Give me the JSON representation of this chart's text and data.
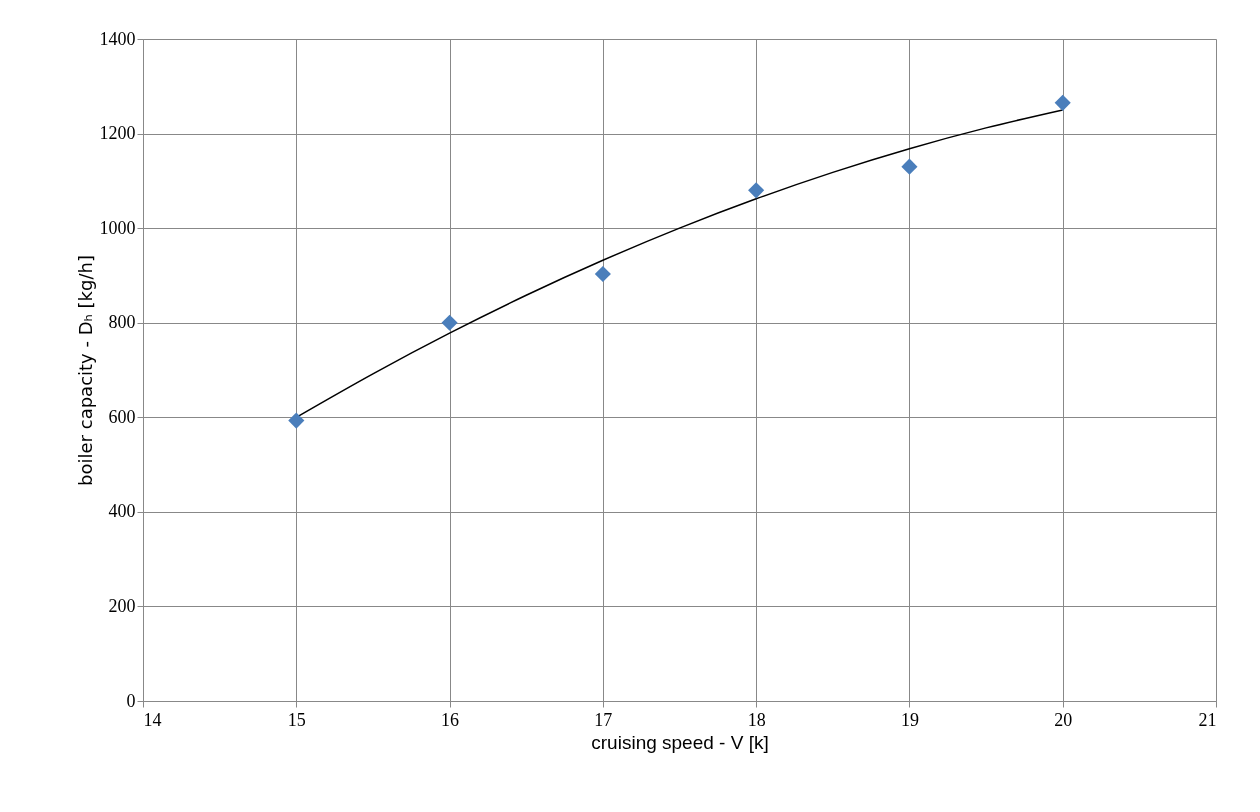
{
  "chart_data": {
    "type": "scatter",
    "xlabel": "cruising speed - V [k]",
    "ylabel": "boiler capacity - Dₕ [kg/h]",
    "xlim": [
      14,
      21
    ],
    "xticks": [
      14,
      15,
      16,
      17,
      18,
      19,
      20,
      21
    ],
    "ylim": [
      0,
      1400
    ],
    "yticks": [
      0,
      200,
      400,
      600,
      800,
      1000,
      1200,
      1400
    ],
    "grid": true,
    "marker": "diamond",
    "series": [
      {
        "color": "#4a7ebb",
        "x": [
          15,
          16,
          17,
          18,
          19,
          20
        ],
        "values": [
          593,
          800,
          903,
          1080,
          1130,
          1265
        ]
      },
      {
        "type": "line",
        "color": "#000000",
        "line_style": "solid",
        "marker": "none",
        "x": [
          15,
          15.5,
          16,
          16.5,
          17,
          17.5,
          18,
          18.5,
          19,
          19.5,
          20
        ],
        "values": [
          600,
          692,
          778,
          858,
          932,
          1000,
          1062,
          1118,
          1168,
          1212,
          1250
        ]
      }
    ]
  }
}
